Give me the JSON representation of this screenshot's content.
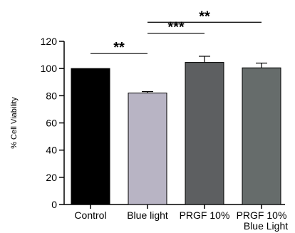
{
  "chart_data": {
    "type": "bar",
    "title": "",
    "xlabel": "",
    "ylabel": "% Cell Viability",
    "ylim": [
      0,
      120
    ],
    "yticks": [
      0,
      20,
      40,
      60,
      80,
      100,
      120
    ],
    "grid": false,
    "categories": [
      [
        "Control"
      ],
      [
        "Blue light"
      ],
      [
        "PRGF 10%"
      ],
      [
        "PRGF 10%",
        "Blue Light"
      ]
    ],
    "values": [
      100,
      82,
      104.5,
      100.5
    ],
    "errors": [
      0,
      1,
      4.5,
      3.5
    ],
    "bar_colors": [
      "#000000",
      "#b8b4c4",
      "#5d5f61",
      "#666c6b"
    ],
    "significance": [
      {
        "from": 0,
        "to": 1,
        "label": "**",
        "y": 111
      },
      {
        "from": 1,
        "to": 2,
        "label": "***",
        "y": 126
      },
      {
        "from": 1,
        "to": 3,
        "label": "**",
        "y": 134
      }
    ]
  }
}
